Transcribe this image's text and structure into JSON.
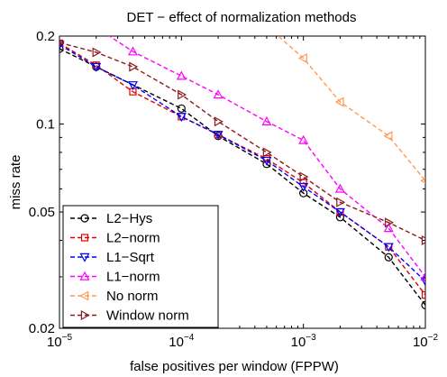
{
  "chart_data": {
    "type": "line",
    "title": "DET − effect of normalization methods",
    "xlabel": "false positives per window (FPPW)",
    "ylabel": "miss rate",
    "xscale": "log",
    "yscale": "log",
    "xlim": [
      1e-05,
      0.01
    ],
    "ylim": [
      0.02,
      0.2
    ],
    "x_ticks": [
      {
        "value": 1e-05,
        "base": "10",
        "exp": "−5"
      },
      {
        "value": 0.0001,
        "base": "10",
        "exp": "−4"
      },
      {
        "value": 0.001,
        "base": "10",
        "exp": "−3"
      },
      {
        "value": 0.01,
        "base": "10",
        "exp": "−2"
      }
    ],
    "y_ticks": [
      {
        "value": 0.02,
        "label": "0.02"
      },
      {
        "value": 0.05,
        "label": "0.05"
      },
      {
        "value": 0.1,
        "label": "0.1"
      },
      {
        "value": 0.2,
        "label": "0.2"
      }
    ],
    "grid": false,
    "legend_position": "bottom-left",
    "series": [
      {
        "name": "L2−Hys",
        "color": "#000000",
        "marker": "circle",
        "x": [
          1e-05,
          2e-05,
          0.0001,
          0.0002,
          0.0005,
          0.001,
          0.002,
          0.005,
          0.01
        ],
        "y": [
          0.181,
          0.157,
          0.113,
          0.091,
          0.073,
          0.058,
          0.048,
          0.035,
          0.024
        ]
      },
      {
        "name": "L2−norm",
        "color": "#e00000",
        "marker": "square",
        "x": [
          1e-05,
          2e-05,
          4e-05,
          0.0001,
          0.0002,
          0.0005,
          0.001,
          0.002,
          0.005,
          0.01
        ],
        "y": [
          0.189,
          0.159,
          0.129,
          0.106,
          0.092,
          0.076,
          0.063,
          0.05,
          0.038,
          0.026
        ]
      },
      {
        "name": "L1−Sqrt",
        "color": "#0000ff",
        "marker": "triangle-down",
        "x": [
          1e-05,
          2e-05,
          4e-05,
          0.0001,
          0.0002,
          0.0005,
          0.001,
          0.002,
          0.005,
          0.01
        ],
        "y": [
          0.187,
          0.157,
          0.136,
          0.106,
          0.092,
          0.075,
          0.061,
          0.05,
          0.038,
          0.029
        ]
      },
      {
        "name": "L1−norm",
        "color": "#ff00ff",
        "marker": "triangle-up",
        "x": [
          1e-05,
          4e-05,
          0.0001,
          0.0002,
          0.0005,
          0.001,
          0.002,
          0.005,
          0.01
        ],
        "y": [
          0.26,
          0.177,
          0.146,
          0.126,
          0.102,
          0.088,
          0.06,
          0.044,
          0.03
        ]
      },
      {
        "name": "No norm",
        "color": "#ff9955",
        "marker": "triangle-left",
        "x": [
          0.00025,
          0.001,
          0.002,
          0.005,
          0.01
        ],
        "y": [
          0.28,
          0.168,
          0.119,
          0.091,
          0.064
        ]
      },
      {
        "name": "Window norm",
        "color": "#8b1a1a",
        "marker": "triangle-right",
        "x": [
          1e-05,
          2e-05,
          4e-05,
          0.0001,
          0.0002,
          0.0005,
          0.001,
          0.002,
          0.005,
          0.01
        ],
        "y": [
          0.19,
          0.176,
          0.157,
          0.126,
          0.102,
          0.08,
          0.066,
          0.054,
          0.046,
          0.04
        ]
      }
    ]
  }
}
